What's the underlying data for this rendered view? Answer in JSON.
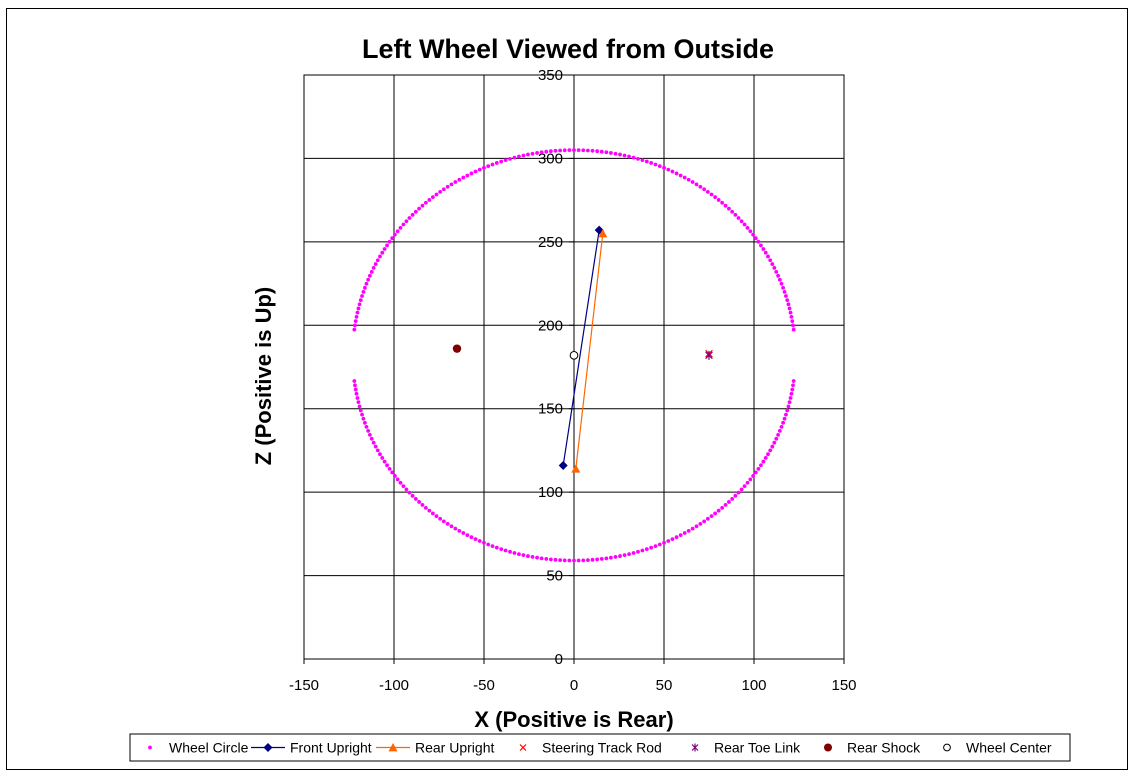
{
  "chart_data": {
    "type": "scatter",
    "title": "Left Wheel Viewed from Outside",
    "xlabel": "X (Positive is Rear)",
    "ylabel": "Z (Positive is Up)",
    "xlim": [
      -150,
      150
    ],
    "ylim": [
      0,
      350
    ],
    "x_ticks": [
      -150,
      -100,
      -50,
      0,
      50,
      100,
      150
    ],
    "y_ticks": [
      0,
      50,
      100,
      150,
      200,
      250,
      300,
      350
    ],
    "grid": true,
    "legend_position": "bottom",
    "series": [
      {
        "name": "Wheel Circle",
        "marker": "dot",
        "line": false,
        "color": "#FF00FF",
        "circle": {
          "center_x": 0,
          "center_z": 182,
          "radius": 123,
          "gaps_at_z": [
            168,
            196
          ]
        }
      },
      {
        "name": "Front Upright",
        "marker": "diamond",
        "line": true,
        "color": "#000080",
        "x": [
          -6,
          14
        ],
        "y": [
          116,
          257
        ]
      },
      {
        "name": "Rear Upright",
        "marker": "triangle",
        "line": true,
        "color": "#FF6600",
        "x": [
          1,
          16
        ],
        "y": [
          114,
          255
        ]
      },
      {
        "name": "Steering Track Rod",
        "marker": "x",
        "line": false,
        "color": "#FF0000",
        "x": [
          75
        ],
        "y": [
          183
        ]
      },
      {
        "name": "Rear Toe Link",
        "marker": "star",
        "line": false,
        "color": "#800080",
        "x": [
          75
        ],
        "y": [
          182
        ]
      },
      {
        "name": "Rear Shock",
        "marker": "circle-filled",
        "line": false,
        "color": "#800000",
        "x": [
          -65
        ],
        "y": [
          186
        ]
      },
      {
        "name": "Wheel Center",
        "marker": "circle-open",
        "line": false,
        "color": "#000000",
        "x": [
          0
        ],
        "y": [
          182
        ]
      }
    ]
  }
}
